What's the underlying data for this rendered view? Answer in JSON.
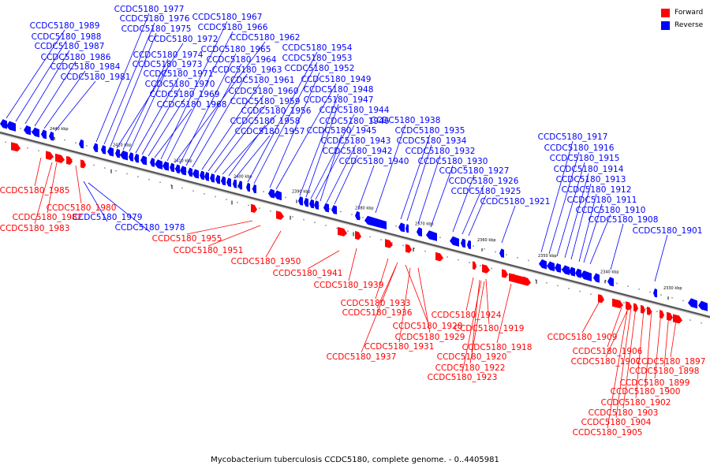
{
  "caption": "Mycobacterium tuberculosis CCDC5180, complete genome. - 0..4405981",
  "legend": {
    "forward_label": "Forward",
    "reverse_label": "Reverse"
  },
  "colors": {
    "forward": "#ff0000",
    "reverse": "#0000ff",
    "axis": "#555555",
    "tick": "#000000"
  },
  "ticks": [
    "2440 kbp",
    "2420 kbp",
    "2410 kbp",
    "2400 kbp",
    "2390 kbp",
    "2380 kbp",
    "2370 kbp",
    "2360 kbp",
    "2350 kbp",
    "2340 kbp",
    "2330 kbp"
  ],
  "reverse_labels": [
    "CCDC5180_1989",
    "CCDC5180_1988",
    "CCDC5180_1987",
    "CCDC5180_1986",
    "CCDC5180_1984",
    "CCDC5180_1981",
    "CCDC5180_1977",
    "CCDC5180_1976",
    "CCDC5180_1975",
    "CCDC5180_1972",
    "CCDC5180_1974",
    "CCDC5180_1973",
    "CCDC5180_1971",
    "CCDC5180_1970",
    "CCDC5180_1969",
    "CCDC5180_1968",
    "CCDC5180_1967",
    "CCDC5180_1966",
    "CCDC5180_1962",
    "CCDC5180_1965",
    "CCDC5180_1964",
    "CCDC5180_1963",
    "CCDC5180_1961",
    "CCDC5180_1960",
    "CCDC5180_1959",
    "CCDC5180_1956",
    "CCDC5180_1958",
    "CCDC5180_1957",
    "CCDC5180_1954",
    "CCDC5180_1953",
    "CCDC5180_1952",
    "CCDC5180_1949",
    "CCDC5180_1948",
    "CCDC5180_1947",
    "CCDC5180_1944",
    "CCDC5180_1946",
    "CCDC5180_1945",
    "CCDC5180_1943",
    "CCDC5180_1942",
    "CCDC5180_1940",
    "CCDC5180_1938",
    "CCDC5180_1935",
    "CCDC5180_1934",
    "CCDC5180_1932",
    "CCDC5180_1930",
    "CCDC5180_1927",
    "CCDC5180_1926",
    "CCDC5180_1925",
    "CCDC5180_1921",
    "CCDC5180_1917",
    "CCDC5180_1916",
    "CCDC5180_1915",
    "CCDC5180_1914",
    "CCDC5180_1913",
    "CCDC5180_1912",
    "CCDC5180_1911",
    "CCDC5180_1910",
    "CCDC5180_1908",
    "CCDC5180_1901",
    "CCDC5180_1979",
    "CCDC5180_1978"
  ],
  "forward_labels": [
    "CCDC5180_1985",
    "CCDC5180_1980",
    "CCDC5180_1982",
    "CCDC5180_1983",
    "CCDC5180_1955",
    "CCDC5180_1951",
    "CCDC5180_1950",
    "CCDC5180_1941",
    "CCDC5180_1939",
    "CCDC5180_1933",
    "CCDC5180_1936",
    "CCDC5180_1928",
    "CCDC5180_1929",
    "CCDC5180_1931",
    "CCDC5180_1937",
    "CCDC5180_1924",
    "CCDC5180_1919",
    "CCDC5180_1918",
    "CCDC5180_1920",
    "CCDC5180_1922",
    "CCDC5180_1923",
    "CCDC5180_1909",
    "CCDC5180_1906",
    "CCDC5180_1907",
    "CCDC5180_1897",
    "CCDC5180_1898",
    "CCDC5180_1899",
    "CCDC5180_1900",
    "CCDC5180_1902",
    "CCDC5180_1903",
    "CCDC5180_1904",
    "CCDC5180_1905"
  ]
}
